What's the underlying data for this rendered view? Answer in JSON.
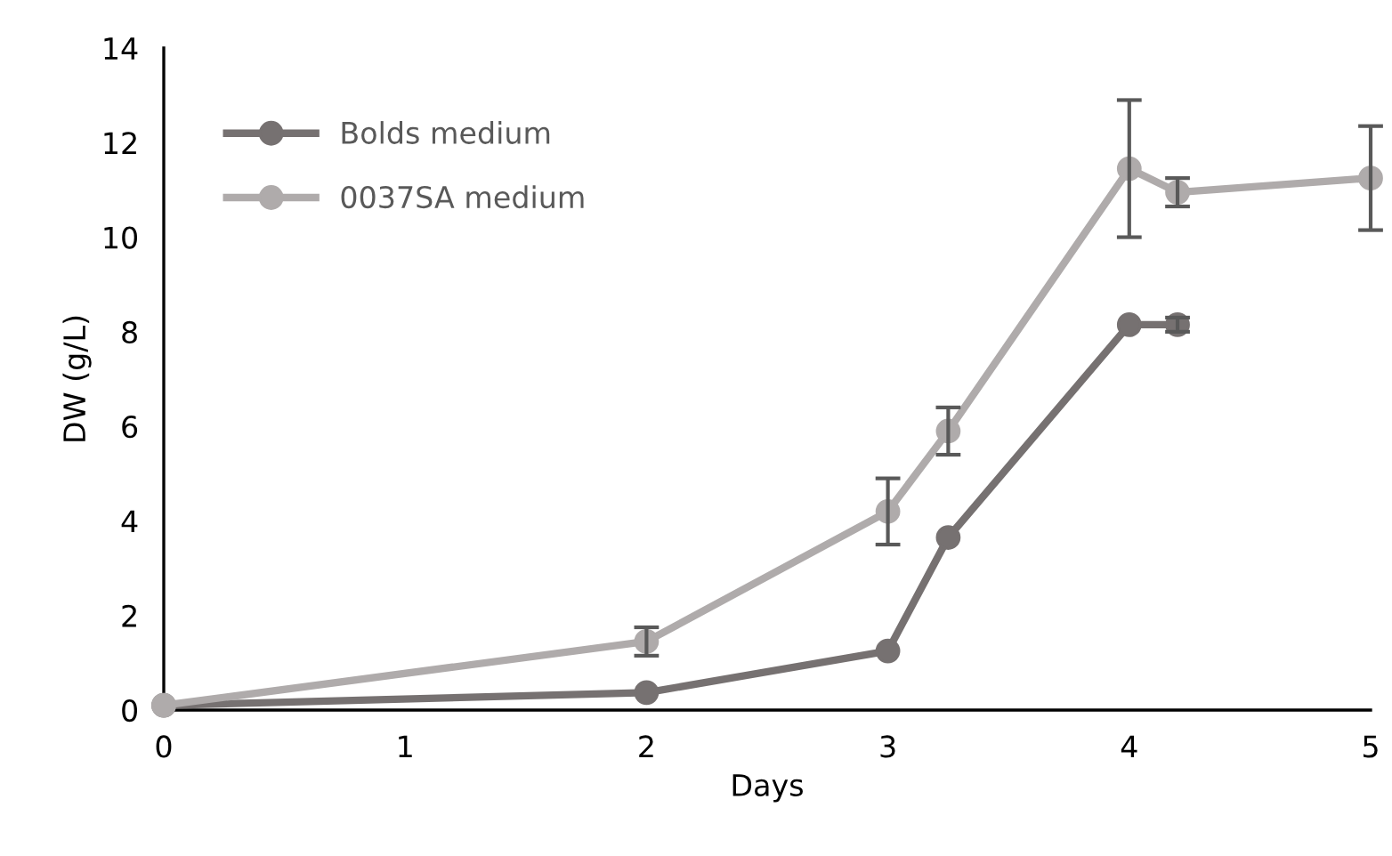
{
  "chart_data": {
    "type": "line",
    "xlabel": "Days",
    "ylabel": "DW (g/L)",
    "xlim": [
      0,
      5
    ],
    "xticks": [
      0,
      1,
      2,
      3,
      4,
      5
    ],
    "ylim": [
      0,
      14
    ],
    "yticks": [
      0,
      2,
      4,
      6,
      8,
      10,
      12,
      14
    ],
    "grid": false,
    "legend": "top left",
    "marker": "circle",
    "line_style": "solid",
    "series": [
      {
        "name": "Bolds medium",
        "color": "#767171",
        "x": [
          0,
          2,
          3,
          3.25,
          4,
          4.2
        ],
        "values": [
          0.1,
          0.37,
          1.25,
          3.65,
          8.15,
          8.15
        ],
        "errors": [
          null,
          null,
          null,
          null,
          null,
          0.15
        ]
      },
      {
        "name": "0037SA medium",
        "color": "#afabab",
        "x": [
          0,
          2,
          3,
          3.25,
          4,
          4.2,
          5
        ],
        "values": [
          0.1,
          1.45,
          4.2,
          5.9,
          11.45,
          10.95,
          11.25
        ],
        "errors": [
          null,
          0.3,
          0.7,
          0.5,
          1.45,
          0.3,
          1.1
        ]
      }
    ]
  }
}
